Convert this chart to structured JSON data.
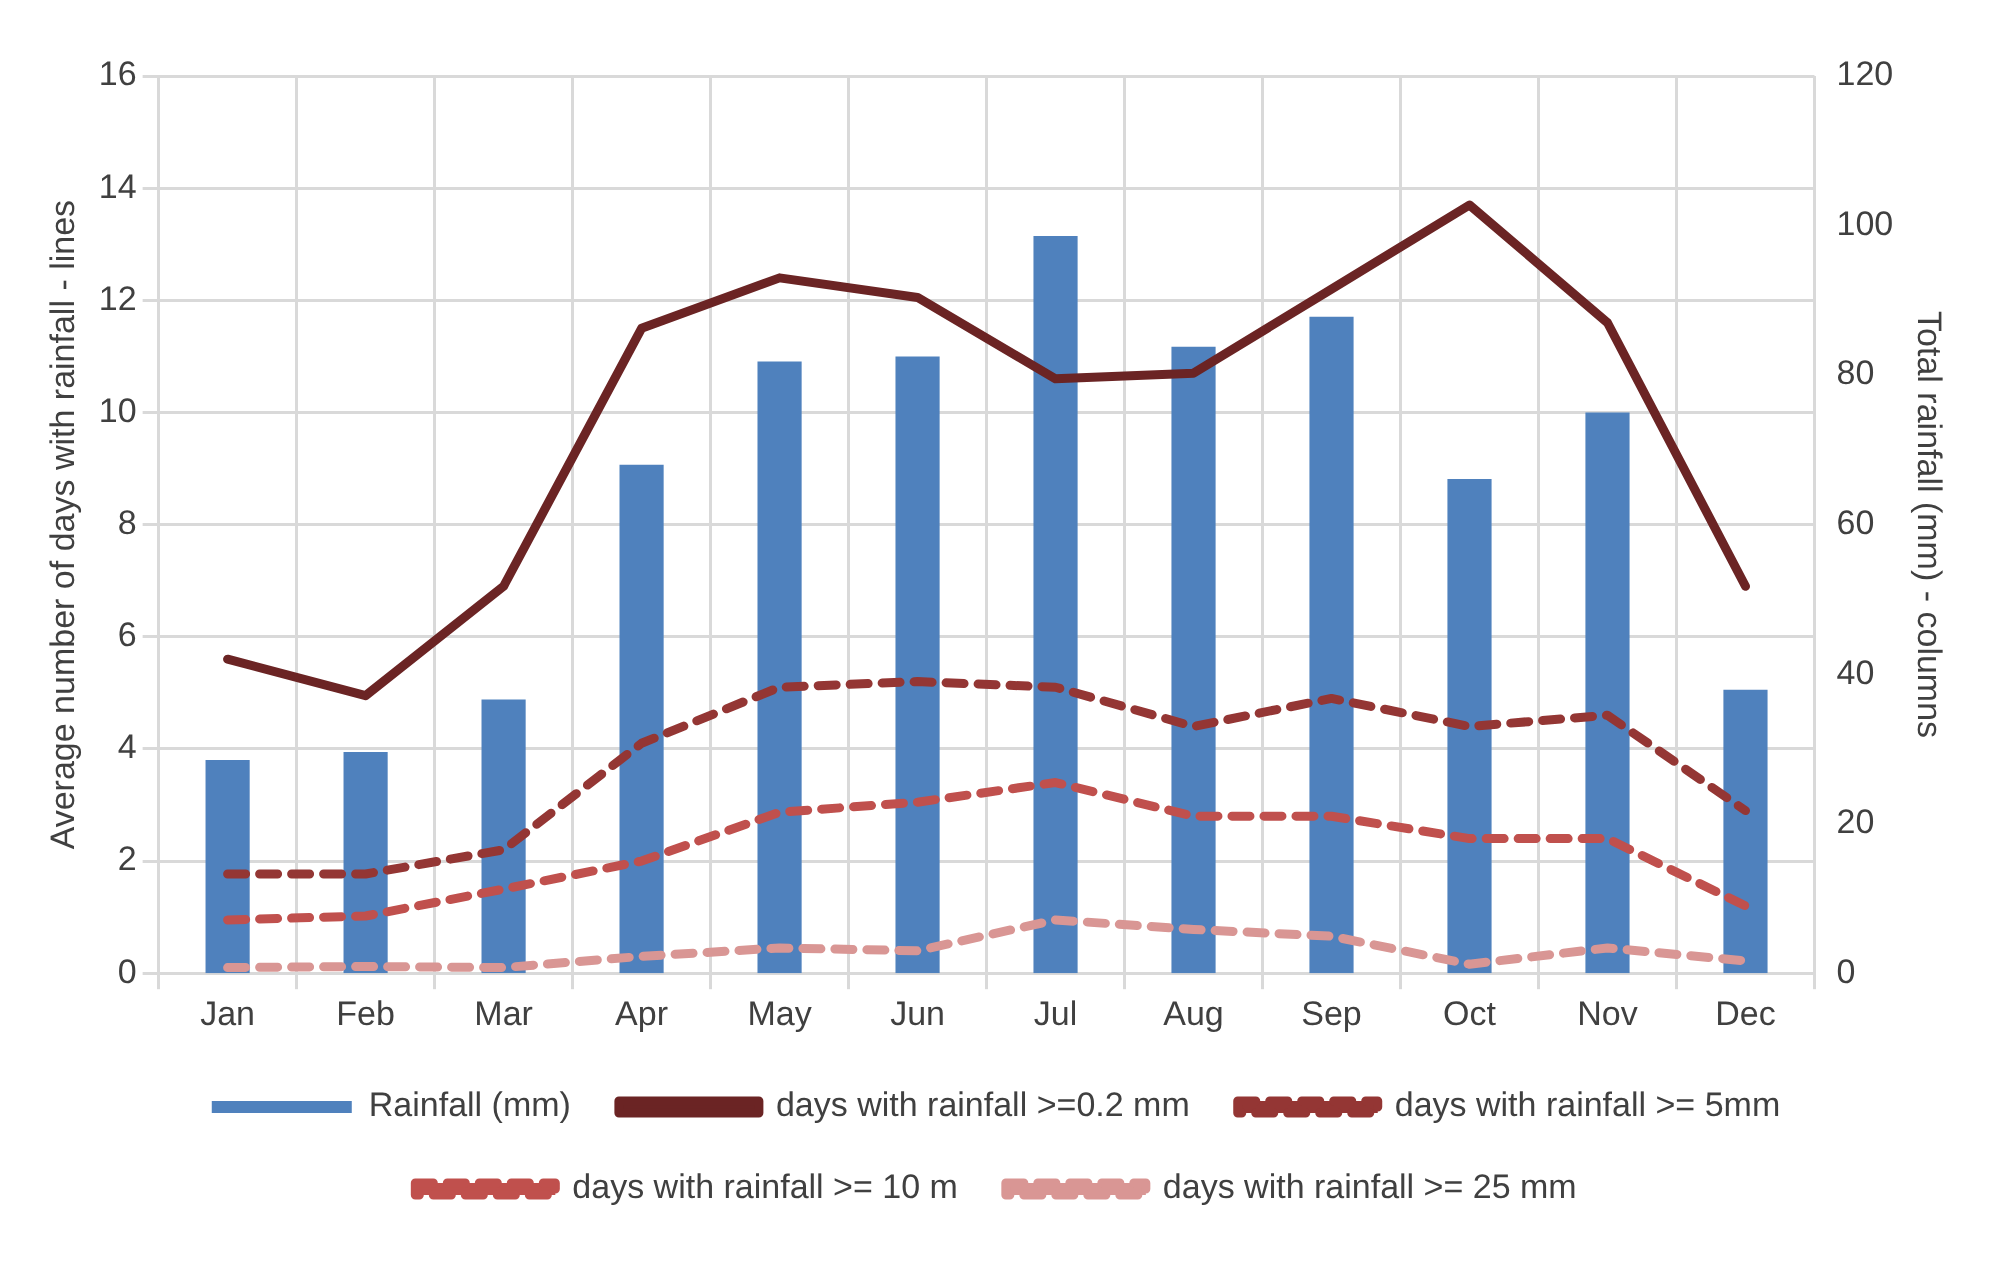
{
  "chart_data": {
    "type": "bar",
    "ylabel": "Average number of days with rainfall - lines",
    "y2label": "Total rainfall (mm) - columns",
    "categories": [
      "Jan",
      "Feb",
      "Mar",
      "Apr",
      "May",
      "Jun",
      "Jul",
      "Aug",
      "Sep",
      "Oct",
      "Nov",
      "Dec"
    ],
    "series": [
      {
        "name": "Rainfall (mm)",
        "axis": "y2",
        "color": "#4f81bd",
        "values": [
          28.5,
          29.6,
          36.6,
          68,
          81.8,
          82.5,
          98.6,
          83.8,
          87.8,
          66.1,
          75,
          37.9
        ]
      },
      {
        "name": "days with rainfall >=0.2 mm",
        "type": "line",
        "line_style": "solid",
        "color": "#6b2424",
        "values": [
          5.6,
          4.95,
          6.9,
          11.5,
          12.4,
          12.05,
          10.6,
          10.7,
          12.2,
          13.7,
          11.6,
          6.9
        ]
      },
      {
        "name": "days with rainfall >= 5mm",
        "type": "line",
        "line_style": "dashed",
        "color": "#943634",
        "values": [
          1.77,
          1.77,
          2.2,
          4.1,
          5.1,
          5.2,
          5.1,
          4.4,
          4.9,
          4.4,
          4.6,
          2.9
        ]
      },
      {
        "name": "days with rainfall >= 10 m",
        "type": "line",
        "line_style": "dashed",
        "color": "#c0504d",
        "values": [
          0.95,
          1.02,
          1.5,
          2.0,
          2.87,
          3.05,
          3.4,
          2.8,
          2.8,
          2.4,
          2.4,
          1.2
        ]
      },
      {
        "name": "days with rainfall >= 25 mm",
        "type": "line",
        "line_style": "dashed",
        "color": "#d99694",
        "values": [
          0.1,
          0.12,
          0.1,
          0.3,
          0.45,
          0.4,
          0.95,
          0.78,
          0.66,
          0.16,
          0.45,
          0.22
        ]
      }
    ],
    "ylim": [
      0,
      16
    ],
    "yticks": [
      0,
      2,
      4,
      6,
      8,
      10,
      12,
      14,
      16
    ],
    "y2lim": [
      0,
      120
    ],
    "y2ticks": [
      0,
      20,
      40,
      60,
      80,
      100,
      120
    ],
    "grid": true,
    "legend": "bottom",
    "marker": "none"
  }
}
